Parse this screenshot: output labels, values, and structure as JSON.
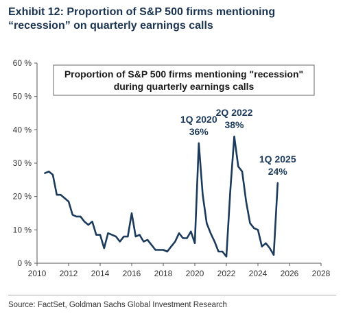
{
  "header": {
    "exhibit_title": "Exhibit 12: Proportion of S&P 500 firms mentioning “recession” on quarterly earnings calls"
  },
  "footer": {
    "source": "Source: FactSet, Goldman Sachs Global Investment Research"
  },
  "colors": {
    "line": "#1b3a5c",
    "title": "#1b3451",
    "axis": "#555555",
    "text": "#333333"
  },
  "chart_data": {
    "type": "line",
    "title_lines": [
      "Proportion of S&P 500 firms mentioning \"recession\"",
      "during quarterly earnings calls"
    ],
    "xlabel": "",
    "ylabel": "",
    "xlim": [
      2010,
      2028
    ],
    "ylim": [
      0,
      60
    ],
    "x_ticks": [
      "2010",
      "2012",
      "2014",
      "2016",
      "2018",
      "2020",
      "2022",
      "2024",
      "2026",
      "2028"
    ],
    "x_tick_values": [
      2010,
      2012,
      2014,
      2016,
      2018,
      2020,
      2022,
      2024,
      2026,
      2028
    ],
    "y_ticks": [
      "0 %",
      "10 %",
      "20 %",
      "30 %",
      "40 %",
      "50 %",
      "60 %"
    ],
    "y_tick_values": [
      0,
      10,
      20,
      30,
      40,
      50,
      60
    ],
    "grid": false,
    "series": [
      {
        "x": [
          2010.5,
          2010.75,
          2011.0,
          2011.25,
          2011.5,
          2011.75,
          2012.0,
          2012.25,
          2012.5,
          2012.75,
          2013.0,
          2013.25,
          2013.5,
          2013.75,
          2014.0,
          2014.25,
          2014.5,
          2014.75,
          2015.0,
          2015.25,
          2015.5,
          2015.75,
          2016.0,
          2016.25,
          2016.5,
          2016.75,
          2017.0,
          2017.25,
          2017.5,
          2017.75,
          2018.0,
          2018.25,
          2018.5,
          2018.75,
          2019.0,
          2019.25,
          2019.5,
          2019.75,
          2020.0,
          2020.25,
          2020.5,
          2020.75,
          2021.0,
          2021.25,
          2021.5,
          2021.75,
          2022.0,
          2022.25,
          2022.5,
          2022.75,
          2023.0,
          2023.25,
          2023.5,
          2023.75,
          2024.0,
          2024.25,
          2024.5,
          2024.75,
          2025.0
        ],
        "values": [
          27,
          27.5,
          26.5,
          20.5,
          20.5,
          19.5,
          18.5,
          14.5,
          14,
          14,
          12.5,
          11.5,
          12.5,
          8.5,
          8.5,
          4.5,
          9,
          8.5,
          8,
          6.5,
          8,
          8,
          15,
          8,
          8.5,
          6.5,
          7,
          5.5,
          4,
          4,
          4,
          3.5,
          5,
          6.5,
          9,
          7.5,
          7.5,
          9.5,
          6,
          36,
          20.5,
          12,
          9,
          6.5,
          3.5,
          3.5,
          2,
          22,
          38,
          29,
          27.5,
          18.5,
          12,
          10.5,
          10,
          5,
          6,
          4.5,
          2.5
        ]
      },
      {
        "x": [
          2025.0,
          2025.25
        ],
        "values": [
          2.5,
          24
        ]
      }
    ],
    "annotations": [
      {
        "lines": [
          "1Q 2020",
          "36%"
        ],
        "x": 2020.25,
        "y": 36
      },
      {
        "lines": [
          "2Q 2022",
          "38%"
        ],
        "x": 2022.5,
        "y": 38
      },
      {
        "lines": [
          "1Q 2025",
          "24%"
        ],
        "x": 2025.25,
        "y": 24
      }
    ]
  }
}
